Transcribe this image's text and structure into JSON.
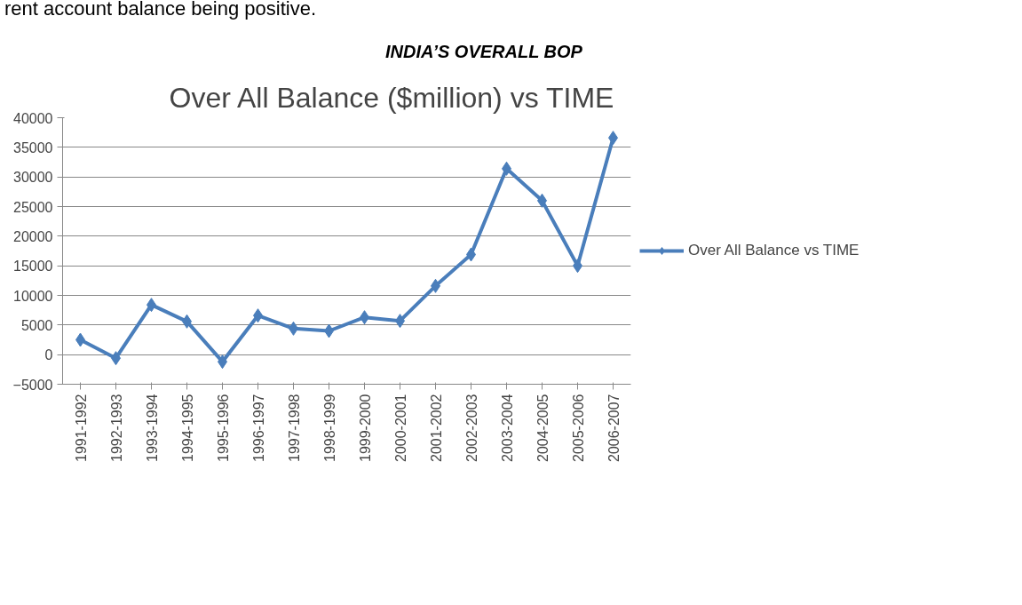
{
  "chart_data": {
    "type": "line",
    "title": "Over All Balance ($million) vs TIME",
    "annotations": [
      "rent account balance being positive.",
      "INDIA’S OVERALL BOP"
    ],
    "categories": [
      "1991-1992",
      "1992-1993",
      "1993-1994",
      "1994-1995",
      "1995-1996",
      "1996-1997",
      "1997-1998",
      "1998-1999",
      "1999-2000",
      "2000-2001",
      "2001-2002",
      "2002-2003",
      "2003-2004",
      "2004-2005",
      "2005-2006",
      "2006-2007"
    ],
    "series": [
      {
        "name": "Over All Balance vs TIME",
        "color": "#4a7ebb",
        "values": [
          2500,
          -600,
          8400,
          5600,
          -1200,
          6600,
          4400,
          4000,
          6300,
          5700,
          11600,
          16900,
          31400,
          26000,
          15000,
          36600
        ]
      }
    ],
    "ylim": [
      -5000,
      40000
    ],
    "yticks": [
      -5000,
      0,
      5000,
      10000,
      15000,
      20000,
      25000,
      30000,
      35000,
      40000
    ],
    "grid": "y",
    "legend": "right",
    "marker": "diamond",
    "line_style": "solid"
  }
}
